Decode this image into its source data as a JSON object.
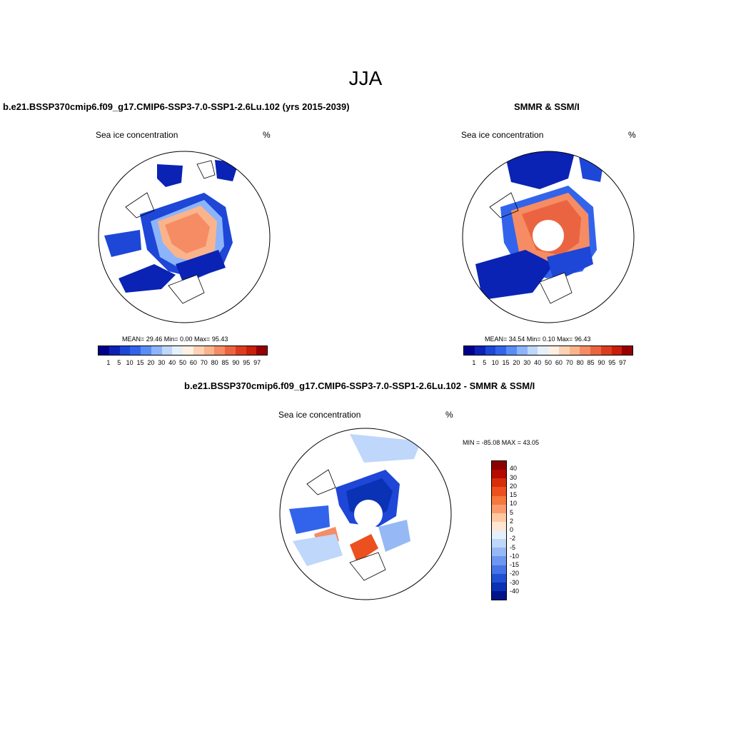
{
  "title": "JJA",
  "panel1": {
    "title": "b.e21.BSSP370cmip6.f09_g17.CMIP6-SSP3-7.0-SSP1-2.6Lu.102 (yrs 2015-2039)",
    "var_label": "Sea ice concentration",
    "units": "%",
    "stats": "MEAN=  29.46  Min=    0.00  Max=  95.43"
  },
  "panel2": {
    "title": "SMMR & SSM/I",
    "var_label": "Sea ice concentration",
    "units": "%",
    "stats": "MEAN=  34.54  Min=    0.10  Max=  96.43"
  },
  "panel3": {
    "title": "b.e21.BSSP370cmip6.f09_g17.CMIP6-SSP3-7.0-SSP1-2.6Lu.102 - SMMR & SSM/I",
    "var_label": "Sea ice concentration",
    "units": "%",
    "minmax": "MIN = -85.08 MAX =  43.05"
  },
  "colorbar": {
    "ticks": [
      "1",
      "5",
      "10",
      "15",
      "20",
      "30",
      "40",
      "50",
      "60",
      "70",
      "80",
      "85",
      "90",
      "95",
      "97"
    ],
    "colors": [
      "#00008c",
      "#0a23b4",
      "#1e46d7",
      "#3264eb",
      "#5a8cf5",
      "#8cb4fa",
      "#bed7fa",
      "#e6f0fa",
      "#fff0e1",
      "#ffd2b4",
      "#fab48c",
      "#f58c64",
      "#eb6441",
      "#dc3c1e",
      "#c81e0a",
      "#960000"
    ]
  },
  "diff_colorbar": {
    "ticks": [
      "40",
      "30",
      "20",
      "15",
      "10",
      "5",
      "2",
      "0",
      "-2",
      "-5",
      "-10",
      "-15",
      "-20",
      "-30",
      "-40"
    ],
    "colors": [
      "#8c0000",
      "#b40a00",
      "#d72d0a",
      "#eb501e",
      "#f5783c",
      "#fa9b6e",
      "#ffc8a0",
      "#ffe6d2",
      "#e6f0fa",
      "#bed7fa",
      "#96b9f5",
      "#6e96f0",
      "#4673e6",
      "#2350d2",
      "#0a32b4",
      "#00148c"
    ]
  }
}
